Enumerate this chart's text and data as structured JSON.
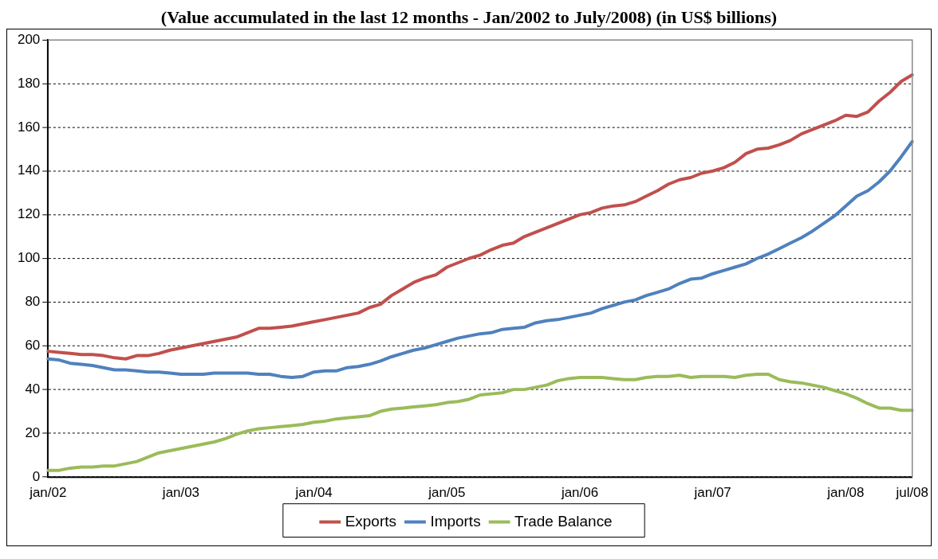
{
  "chart_data": {
    "type": "line",
    "title": "(Value accumulated in the last 12 months - Jan/2002 to July/2008) (in US$ billions)",
    "categories": [
      "jan/02",
      null,
      null,
      null,
      null,
      null,
      null,
      null,
      null,
      null,
      null,
      null,
      "jan/03",
      null,
      null,
      null,
      null,
      null,
      null,
      null,
      null,
      null,
      null,
      null,
      "jan/04",
      null,
      null,
      null,
      null,
      null,
      null,
      null,
      null,
      null,
      null,
      null,
      "jan/05",
      null,
      null,
      null,
      null,
      null,
      null,
      null,
      null,
      null,
      null,
      null,
      "jan/06",
      null,
      null,
      null,
      null,
      null,
      null,
      null,
      null,
      null,
      null,
      null,
      "jan/07",
      null,
      null,
      null,
      null,
      null,
      null,
      null,
      null,
      null,
      null,
      null,
      "jan/08",
      null,
      null,
      null,
      null,
      null,
      "jul/08"
    ],
    "series": [
      {
        "name": "Exports",
        "color": "#c0504d",
        "values": [
          57.5,
          57,
          56.5,
          56,
          56,
          55.5,
          54.5,
          54,
          55.5,
          55.5,
          56.5,
          58,
          59,
          60,
          61,
          62,
          63,
          64,
          66,
          68,
          68,
          68.5,
          69,
          70,
          71,
          72,
          73,
          74,
          75,
          77.5,
          79,
          83,
          86,
          89,
          91,
          92.5,
          96,
          98,
          100,
          101.5,
          104,
          106,
          107,
          110,
          112,
          114,
          116,
          118,
          120,
          121,
          123,
          124,
          124.5,
          126,
          128.5,
          131,
          134,
          136,
          137,
          139,
          140,
          141.5,
          144,
          148,
          150,
          150.5,
          152,
          154,
          157,
          159,
          161,
          163,
          165.5,
          165,
          167,
          172,
          176,
          181,
          184
        ]
      },
      {
        "name": "Imports",
        "color": "#4f81bd",
        "values": [
          54,
          53.5,
          52,
          51.5,
          51,
          50,
          49,
          49,
          48.5,
          48,
          48,
          47.5,
          47,
          47,
          47,
          47.5,
          47.5,
          47.5,
          47.5,
          47,
          47,
          46,
          45.5,
          46,
          48,
          48.5,
          48.5,
          50,
          50.5,
          51.5,
          53,
          55,
          56.5,
          58,
          59,
          60.5,
          62,
          63.5,
          64.5,
          65.5,
          66,
          67.5,
          68,
          68.5,
          70.5,
          71.5,
          72,
          73,
          74,
          75,
          77,
          78.5,
          80,
          81,
          83,
          84.5,
          86,
          88.5,
          90.5,
          91,
          93,
          94.5,
          96,
          97.5,
          100,
          102,
          104.5,
          107,
          109.5,
          112.5,
          116,
          119.5,
          124,
          128.5,
          131,
          135,
          140,
          146.5,
          153.5
        ]
      },
      {
        "name": "Trade Balance",
        "color": "#9bbb59",
        "values": [
          3,
          3,
          4,
          4.5,
          4.5,
          5,
          5,
          6,
          7,
          9,
          11,
          12,
          13,
          14,
          15,
          16,
          17.5,
          19.5,
          21,
          22,
          22.5,
          23,
          23.5,
          24,
          25,
          25.5,
          26.5,
          27,
          27.5,
          28,
          30,
          31,
          31.5,
          32,
          32.5,
          33,
          34,
          34.5,
          35.5,
          37.5,
          38,
          38.5,
          40,
          40,
          41,
          42,
          44,
          45,
          45.5,
          45.5,
          45.5,
          45,
          44.5,
          44.5,
          45.5,
          46,
          46,
          46.5,
          45.5,
          46,
          46,
          46,
          45.5,
          46.5,
          47,
          47,
          44.5,
          43.5,
          43,
          42,
          41,
          39.5,
          38,
          36,
          33.5,
          31.5,
          31.5,
          30.5,
          30.5
        ]
      }
    ],
    "ylim": [
      0,
      200
    ],
    "yticks": [
      0,
      20,
      40,
      60,
      80,
      100,
      120,
      140,
      160,
      180,
      200
    ],
    "grid": "y",
    "legend": "bottom",
    "marker": "none",
    "line_style": "solid"
  }
}
